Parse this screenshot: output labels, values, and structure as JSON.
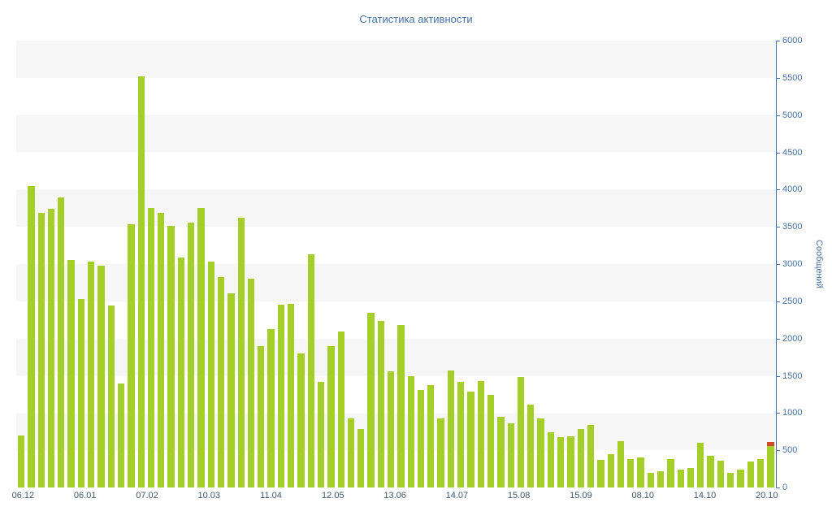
{
  "chart_data": {
    "type": "bar",
    "title": "Статистика активности",
    "xlabel": "",
    "ylabel": "Сообщений",
    "ylim": [
      0,
      6000
    ],
    "y_tick_step": 500,
    "y_ticks": [
      0,
      500,
      1000,
      1500,
      2000,
      2500,
      3000,
      3500,
      4000,
      4500,
      5000,
      5500,
      6000
    ],
    "x_ticks": [
      "06.12",
      "06.01",
      "07.02",
      "10.03",
      "11.04",
      "12.05",
      "13.06",
      "14.07",
      "15.08",
      "15.09",
      "08.10",
      "14.10",
      "20.10"
    ],
    "x_tick_span_pct": [
      0.9,
      98.8
    ],
    "values": [
      700,
      4050,
      3690,
      3740,
      3900,
      3060,
      2530,
      3030,
      2980,
      2440,
      1400,
      3540,
      5520,
      3750,
      3690,
      3510,
      3090,
      3560,
      3750,
      3030,
      2830,
      2610,
      3620,
      2800,
      1900,
      2130,
      2450,
      2470,
      1800,
      3130,
      1420,
      1900,
      2100,
      930,
      790,
      2350,
      2240,
      1560,
      2180,
      1500,
      1310,
      1380,
      930,
      1570,
      1420,
      1290,
      1430,
      1240,
      950,
      860,
      1480,
      1110,
      930,
      740,
      680,
      690,
      790,
      840,
      370,
      450,
      620,
      380,
      400,
      195,
      215,
      380,
      245,
      265,
      600,
      430,
      355,
      195,
      245,
      350,
      380,
      615
    ],
    "last_bar_cap_value": 55,
    "grid": "alternating horizontal bands every 500",
    "legend": "none",
    "colors": {
      "bar": "#a4ce28",
      "bar_cap": "#cf4a27",
      "axis": "#4572a7",
      "title": "#4572a7",
      "x_label": "#3e576f",
      "band": "#f6f6f6"
    }
  }
}
